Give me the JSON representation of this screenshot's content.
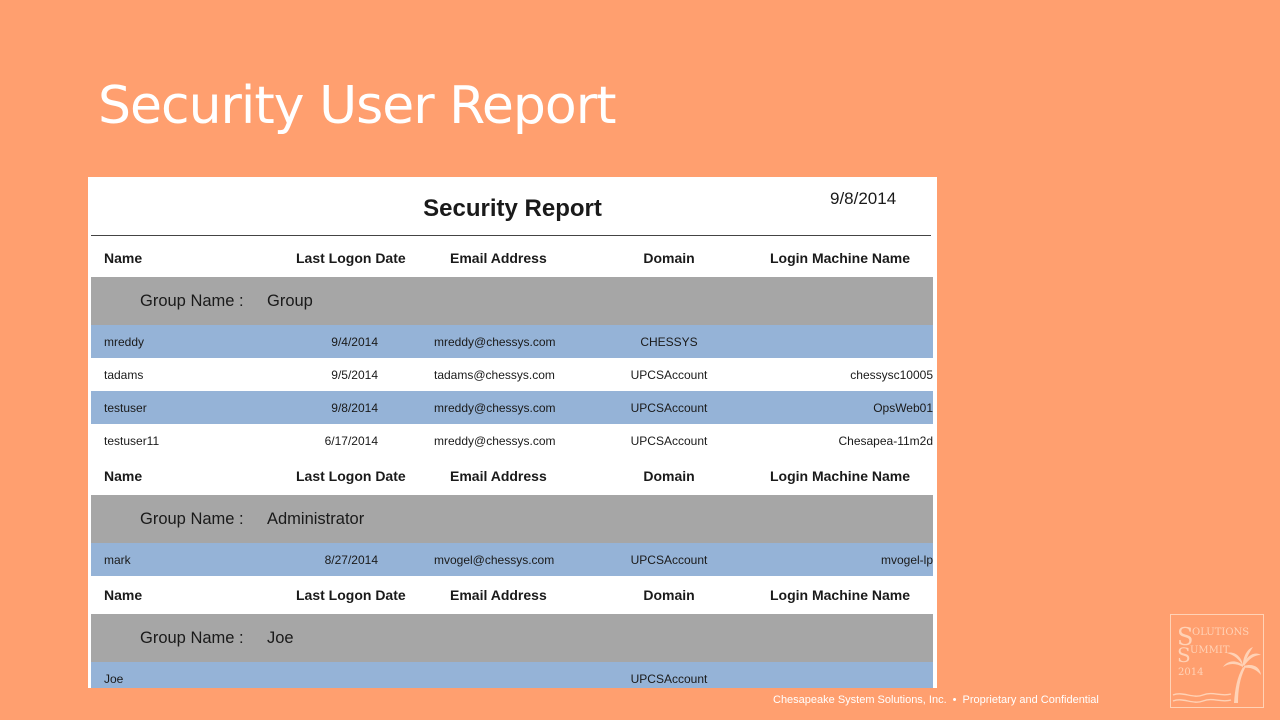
{
  "slide": {
    "title": "Security User Report"
  },
  "report": {
    "title": "Security Report",
    "date": "9/8/2014",
    "columns": {
      "name": "Name",
      "last_logon": "Last Logon Date",
      "email": "Email Address",
      "domain": "Domain",
      "machine": "Login Machine Name"
    },
    "group_label": "Group Name :",
    "groups": [
      {
        "name": "Group",
        "users": [
          {
            "name": "mreddy",
            "last_logon": "9/4/2014",
            "email": "mreddy@chessys.com",
            "domain": "CHESSYS",
            "machine": ""
          },
          {
            "name": "tadams",
            "last_logon": "9/5/2014",
            "email": "tadams@chessys.com",
            "domain": "UPCSAccount",
            "machine": "chessysc10005"
          },
          {
            "name": "testuser",
            "last_logon": "9/8/2014",
            "email": "mreddy@chessys.com",
            "domain": "UPCSAccount",
            "machine": "OpsWeb01"
          },
          {
            "name": "testuser11",
            "last_logon": "6/17/2014",
            "email": "mreddy@chessys.com",
            "domain": "UPCSAccount",
            "machine": "Chesapea-11m2d"
          }
        ]
      },
      {
        "name": "Administrator",
        "users": [
          {
            "name": "mark",
            "last_logon": "8/27/2014",
            "email": "mvogel@chessys.com",
            "domain": "UPCSAccount",
            "machine": "mvogel-lp"
          }
        ]
      },
      {
        "name": "Joe",
        "users": [
          {
            "name": "Joe",
            "last_logon": "",
            "email": "",
            "domain": "UPCSAccount",
            "machine": ""
          }
        ]
      }
    ]
  },
  "footer": {
    "company": "Chesapeake System Solutions, Inc.",
    "separator": "•",
    "notice": "Proprietary and Confidential"
  },
  "logo": {
    "line1": "OLUTIONS",
    "line2": "UMMIT",
    "initial": "S",
    "year": "2014",
    "icon": "palm-tree-icon",
    "color": "#FFD2B6"
  },
  "colors": {
    "background": "#FF9F6F",
    "group_band": "#A6A6A6",
    "alt_row": "#95B3D7"
  }
}
